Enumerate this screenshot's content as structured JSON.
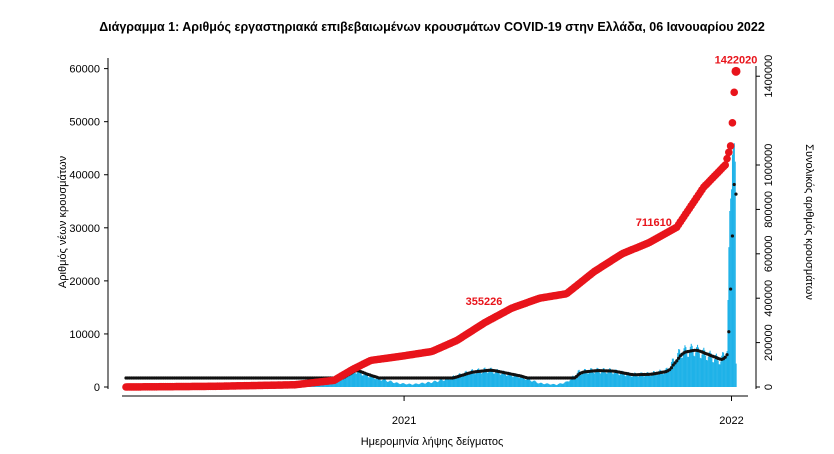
{
  "chart_data": {
    "type": "bar+line",
    "title": "Διάγραμμα 1: Αριθμός εργαστηριακά επιβεβαιωμένων κρουσμάτων COVID-19 στην Ελλάδα, 06 Ιανουαρίου 2022",
    "xlabel": "Ημερομηνία λήψης δείγματος",
    "ylabel_left": "Αριθμός νέων κρουσμάτων",
    "ylabel_right": "Συνολικός αριθμός κρουσμάτων",
    "x_range": [
      "2020-02-26",
      "2022-01-06"
    ],
    "x_ticks": [
      {
        "date": "2021-01-01",
        "label": "2021"
      },
      {
        "date": "2022-01-01",
        "label": "2022"
      }
    ],
    "ylim_left": [
      0,
      62000
    ],
    "yticks_left": [
      0,
      10000,
      20000,
      30000,
      40000,
      50000,
      60000
    ],
    "ylim_right": [
      0,
      1446000
    ],
    "yticks_right": [
      0,
      200000,
      400000,
      600000,
      800000,
      1000000,
      1400000
    ],
    "colors": {
      "bars": "#1fb2e8",
      "cumulative": "#e8141b",
      "moving_average": "#111111"
    },
    "daily_cases_profile": [
      [
        "2020-02-26",
        0
      ],
      [
        "2020-03-25",
        80
      ],
      [
        "2020-05-01",
        20
      ],
      [
        "2020-07-15",
        30
      ],
      [
        "2020-08-15",
        200
      ],
      [
        "2020-09-15",
        350
      ],
      [
        "2020-10-10",
        700
      ],
      [
        "2020-10-25",
        2000
      ],
      [
        "2020-11-06",
        3200
      ],
      [
        "2020-11-20",
        2300
      ],
      [
        "2020-12-05",
        1500
      ],
      [
        "2020-12-25",
        700
      ],
      [
        "2021-01-10",
        500
      ],
      [
        "2021-02-01",
        900
      ],
      [
        "2021-02-20",
        1600
      ],
      [
        "2021-03-15",
        2800
      ],
      [
        "2021-04-05",
        3200
      ],
      [
        "2021-04-20",
        2700
      ],
      [
        "2021-05-10",
        2000
      ],
      [
        "2021-06-01",
        700
      ],
      [
        "2021-06-20",
        450
      ],
      [
        "2021-07-01",
        900
      ],
      [
        "2021-07-15",
        2800
      ],
      [
        "2021-08-01",
        3100
      ],
      [
        "2021-08-20",
        3000
      ],
      [
        "2021-09-10",
        2300
      ],
      [
        "2021-10-01",
        2400
      ],
      [
        "2021-10-20",
        3000
      ],
      [
        "2021-11-05",
        6500
      ],
      [
        "2021-11-20",
        7000
      ],
      [
        "2021-12-05",
        6000
      ],
      [
        "2021-12-20",
        5000
      ],
      [
        "2021-12-27",
        7000
      ],
      [
        "2021-12-30",
        30000
      ],
      [
        "2022-01-02",
        52000
      ],
      [
        "2022-01-04",
        41000
      ],
      [
        "2022-01-05",
        36000
      ],
      [
        "2022-01-06",
        4000
      ]
    ],
    "cumulative_profile": [
      [
        "2020-02-26",
        0
      ],
      [
        "2020-06-01",
        3000
      ],
      [
        "2020-09-01",
        10000
      ],
      [
        "2020-10-15",
        30000
      ],
      [
        "2020-11-05",
        80000
      ],
      [
        "2020-11-25",
        120000
      ],
      [
        "2020-12-31",
        140000
      ],
      [
        "2021-02-01",
        160000
      ],
      [
        "2021-03-01",
        210000
      ],
      [
        "2021-04-01",
        290000
      ],
      [
        "2021-05-01",
        355226
      ],
      [
        "2021-06-01",
        400000
      ],
      [
        "2021-07-01",
        420000
      ],
      [
        "2021-08-01",
        520000
      ],
      [
        "2021-09-01",
        600000
      ],
      [
        "2021-10-01",
        650000
      ],
      [
        "2021-11-01",
        720000
      ],
      [
        "2021-12-01",
        900000
      ],
      [
        "2021-12-25",
        1000000
      ],
      [
        "2022-01-01",
        1100000
      ],
      [
        "2022-01-03",
        1280000
      ],
      [
        "2022-01-06",
        1422020
      ]
    ],
    "annotations": [
      {
        "date": "2021-04-25",
        "value": 355226,
        "text": "355226"
      },
      {
        "date": "2021-10-31",
        "value": 711610,
        "text": "711610"
      },
      {
        "date": "2022-01-06",
        "value": 1422020,
        "text": "1422020"
      }
    ]
  }
}
